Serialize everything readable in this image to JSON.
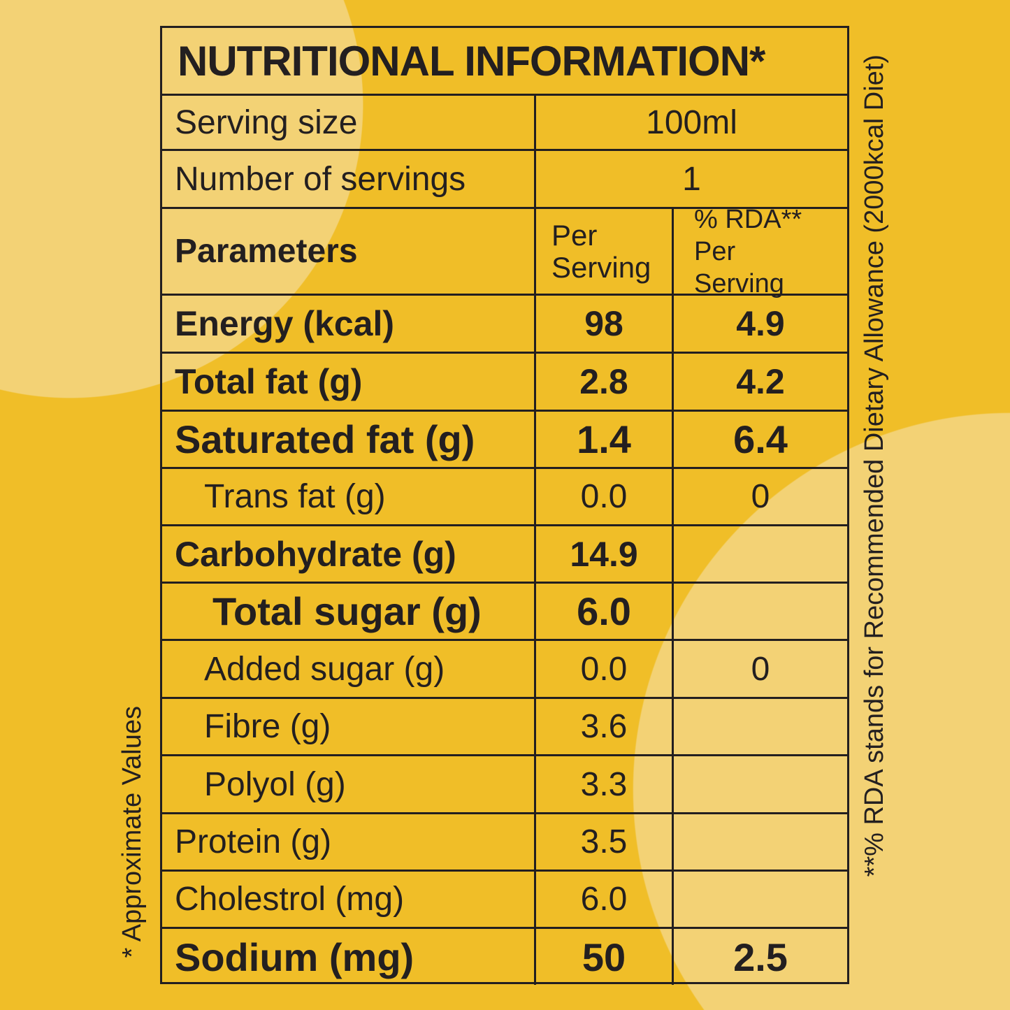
{
  "title": "NUTRITIONAL INFORMATION*",
  "serving_size": {
    "label": "Serving size",
    "value": "100ml"
  },
  "servings": {
    "label": "Number of servings",
    "value": "1"
  },
  "header": {
    "param": "Parameters",
    "per_serving": "Per Serving",
    "rda": "% RDA** Per Serving"
  },
  "rows": [
    {
      "name": "Energy (kcal)",
      "per": "98",
      "rda": "4.9",
      "style": "bold"
    },
    {
      "name": "Total fat (g)",
      "per": "2.8",
      "rda": "4.2",
      "style": "bold"
    },
    {
      "name": "Saturated fat (g)",
      "per": "1.4",
      "rda": "6.4",
      "style": "bold big"
    },
    {
      "name": "Trans fat (g)",
      "per": "0.0",
      "rda": "0",
      "style": "light indent"
    },
    {
      "name": "Carbohydrate (g)",
      "per": "14.9",
      "rda": "",
      "style": "bold"
    },
    {
      "name": "Total sugar (g)",
      "per": "6.0",
      "rda": "",
      "style": "bold sugar"
    },
    {
      "name": "Added sugar (g)",
      "per": "0.0",
      "rda": "0",
      "style": "light indent"
    },
    {
      "name": "Fibre (g)",
      "per": "3.6",
      "rda": "",
      "style": "light indent"
    },
    {
      "name": "Polyol (g)",
      "per": "3.3",
      "rda": "",
      "style": "light indent"
    },
    {
      "name": "Protein (g)",
      "per": "3.5",
      "rda": "",
      "style": "light"
    },
    {
      "name": "Cholestrol (mg)",
      "per": "6.0",
      "rda": "",
      "style": "light"
    },
    {
      "name": "Sodium (mg)",
      "per": "50",
      "rda": "2.5",
      "style": "bold big"
    }
  ],
  "footnote_approx": "* Approximate Values",
  "footnote_rda": "**% RDA stands for Recommended Dietary Allowance (2000kcal Diet)"
}
